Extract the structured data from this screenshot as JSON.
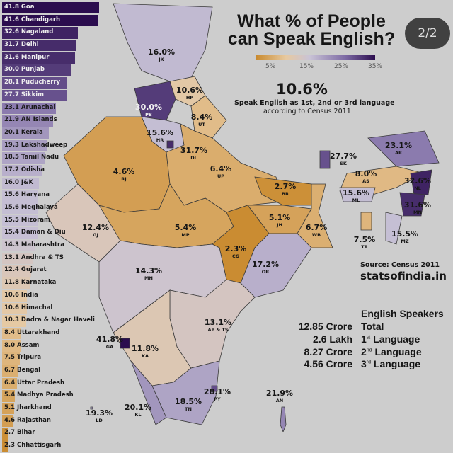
{
  "title": {
    "line1": "What % of People",
    "line2": "can Speak English?"
  },
  "overlay": {
    "page_indicator": "2/2"
  },
  "legend": {
    "ticks": [
      "5%",
      "15%",
      "25%",
      "35%"
    ],
    "scale_colors": [
      "#c98a2e",
      "#e7c9a0",
      "#c9c3d6",
      "#7d6aa4",
      "#2b0d4e"
    ]
  },
  "headline": {
    "value": "10.6%",
    "line1": "Speak English as 1st, 2nd or 3rd language",
    "line2": "according to Census 2011"
  },
  "source": {
    "text": "Source: Census 2011",
    "site": "statsofindia.in"
  },
  "stats": {
    "header": "English Speakers",
    "rows": [
      {
        "amount": "12.85 Crore",
        "num": "",
        "sup": "",
        "label": "Total"
      },
      {
        "amount": "2.6 Lakh",
        "num": "1",
        "sup": "st",
        "label": " Language"
      },
      {
        "amount": "8.27 Crore",
        "num": "2",
        "sup": "nd",
        "label": " Language"
      },
      {
        "amount": "4.56 Crore",
        "num": "3",
        "sup": "rd",
        "label": " Language"
      }
    ]
  },
  "ranking": [
    {
      "value": 41.8,
      "label": "41.8 Goa"
    },
    {
      "value": 41.6,
      "label": "41.6 Chandigarh"
    },
    {
      "value": 32.6,
      "label": "32.6 Nagaland"
    },
    {
      "value": 31.7,
      "label": "31.7 Delhi"
    },
    {
      "value": 31.6,
      "label": "31.6 Manipur"
    },
    {
      "value": 30.0,
      "label": "30.0 Punjab"
    },
    {
      "value": 28.1,
      "label": "28.1 Puducherry"
    },
    {
      "value": 27.7,
      "label": "27.7 Sikkim"
    },
    {
      "value": 23.1,
      "label": "23.1 Arunachal"
    },
    {
      "value": 21.9,
      "label": "21.9 AN Islands"
    },
    {
      "value": 20.1,
      "label": "20.1 Kerala"
    },
    {
      "value": 19.3,
      "label": "19.3 Lakshadweep"
    },
    {
      "value": 18.5,
      "label": "18.5 Tamil Nadu"
    },
    {
      "value": 17.2,
      "label": "17.2 Odisha"
    },
    {
      "value": 16.0,
      "label": "16.0 J&K"
    },
    {
      "value": 15.6,
      "label": "15.6 Haryana"
    },
    {
      "value": 15.6,
      "label": "15.6 Meghalaya"
    },
    {
      "value": 15.5,
      "label": "15.5 Mizoram"
    },
    {
      "value": 15.4,
      "label": "15.4 Daman & Diu"
    },
    {
      "value": 14.3,
      "label": "14.3 Maharashtra"
    },
    {
      "value": 13.1,
      "label": "13.1 Andhra & TS"
    },
    {
      "value": 12.4,
      "label": "12.4 Gujarat"
    },
    {
      "value": 11.8,
      "label": "11.8 Karnataka"
    },
    {
      "value": 10.6,
      "label": "10.6 India"
    },
    {
      "value": 10.6,
      "label": "10.6 Himachal"
    },
    {
      "value": 10.3,
      "label": "10.3 Dadra & Nagar Haveli"
    },
    {
      "value": 8.4,
      "label": "8.4 Uttarakhand"
    },
    {
      "value": 8.0,
      "label": "8.0 Assam"
    },
    {
      "value": 7.5,
      "label": "7.5 Tripura"
    },
    {
      "value": 6.7,
      "label": "6.7 Bengal"
    },
    {
      "value": 6.4,
      "label": "6.4 Uttar Pradesh"
    },
    {
      "value": 5.4,
      "label": "5.4 Madhya Pradesh"
    },
    {
      "value": 5.1,
      "label": "5.1 Jharkhand"
    },
    {
      "value": 4.6,
      "label": "4.6 Rajasthan"
    },
    {
      "value": 2.7,
      "label": "2.7 Bihar"
    },
    {
      "value": 2.3,
      "label": "2.3 Chhattisgarh"
    }
  ],
  "map": {
    "JK": {
      "value": 16.0,
      "text": "16.0%",
      "code": "JK"
    },
    "HP": {
      "value": 10.6,
      "text": "10.6%",
      "code": "HP"
    },
    "PB": {
      "value": 30.0,
      "text": "30.0%",
      "code": "PB"
    },
    "UT": {
      "value": 8.4,
      "text": "8.4%",
      "code": "UT"
    },
    "HR": {
      "value": 15.6,
      "text": "15.6%",
      "code": "HR"
    },
    "DL": {
      "value": 31.7,
      "text": "31.7%",
      "code": "DL"
    },
    "RJ": {
      "value": 4.6,
      "text": "4.6%",
      "code": "RJ"
    },
    "UP": {
      "value": 6.4,
      "text": "6.4%",
      "code": "UP"
    },
    "SK": {
      "value": 27.7,
      "text": "27.7%",
      "code": "SK"
    },
    "AR": {
      "value": 23.1,
      "text": "23.1%",
      "code": "AR"
    },
    "AS": {
      "value": 8.0,
      "text": "8.0%",
      "code": "AS"
    },
    "NL": {
      "value": 32.6,
      "text": "32.6%",
      "code": "NL"
    },
    "ML": {
      "value": 15.6,
      "text": "15.6%",
      "code": "ML"
    },
    "MN": {
      "value": 31.6,
      "text": "31.6%",
      "code": "MN"
    },
    "BR": {
      "value": 2.7,
      "text": "2.7%",
      "code": "BR"
    },
    "GJ": {
      "value": 12.4,
      "text": "12.4%",
      "code": "GJ"
    },
    "MP": {
      "value": 5.4,
      "text": "5.4%",
      "code": "MP"
    },
    "JH": {
      "value": 5.1,
      "text": "5.1%",
      "code": "JH"
    },
    "WB": {
      "value": 6.7,
      "text": "6.7%",
      "code": "WB"
    },
    "TR": {
      "value": 7.5,
      "text": "7.5%",
      "code": "TR"
    },
    "MZ": {
      "value": 15.5,
      "text": "15.5%",
      "code": "MZ"
    },
    "CG": {
      "value": 2.3,
      "text": "2.3%",
      "code": "CG"
    },
    "OR": {
      "value": 17.2,
      "text": "17.2%",
      "code": "OR"
    },
    "MH": {
      "value": 14.3,
      "text": "14.3%",
      "code": "MH"
    },
    "AP": {
      "value": 13.1,
      "text": "13.1%",
      "code": "AP & TS"
    },
    "GA": {
      "value": 41.8,
      "text": "41.8%",
      "code": "GA"
    },
    "KA": {
      "value": 11.8,
      "text": "11.8%",
      "code": "KA"
    },
    "TN": {
      "value": 18.5,
      "text": "18.5%",
      "code": "TN"
    },
    "PY": {
      "value": 28.1,
      "text": "28.1%",
      "code": "PY"
    },
    "KL": {
      "value": 20.1,
      "text": "20.1%",
      "code": "KL"
    },
    "LD": {
      "value": 19.3,
      "text": "19.3%",
      "code": "LD"
    },
    "AN": {
      "value": 21.9,
      "text": "21.9%",
      "code": "AN"
    }
  }
}
